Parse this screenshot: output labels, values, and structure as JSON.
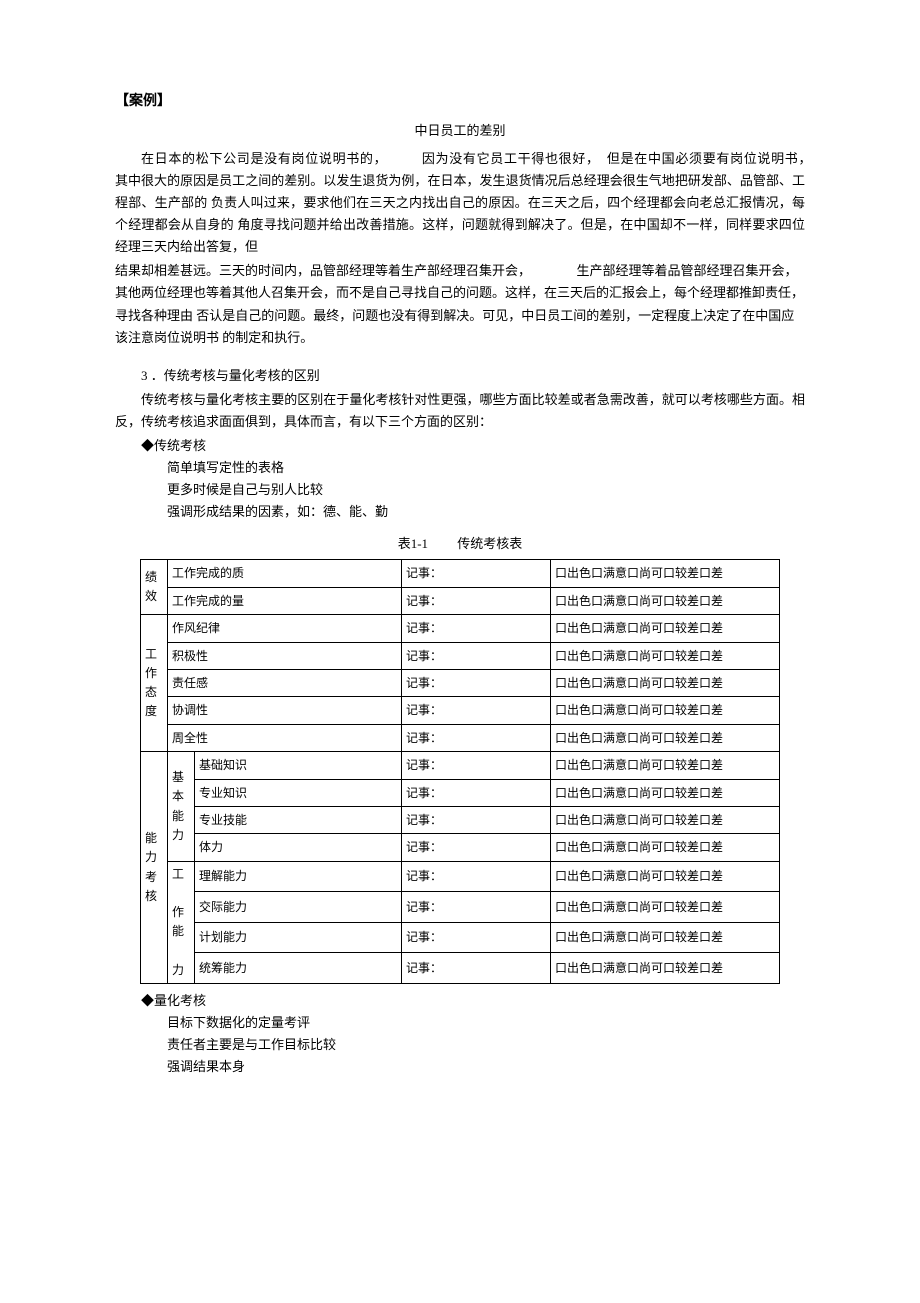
{
  "heading": "【案例】",
  "subtitle": "中日员工的差别",
  "case_paras": [
    "在日本的松下公司是没有岗位说明书的，　　　因为没有它员工干得也很好，　但是在中国必须要有岗位说明书，　　　　其中很大的原因是员工之间的差别。以发生退货为例，在日本，发生退货情况后总经理会很生气地把研发部、品管部、工程部、生产部的 负责人叫过来，要求他们在三天之内找出自己的原因。在三天之后，四个经理都会向老总汇报情况，每个经理都会从自身的 角度寻找问题并给出改善措施。这样，问题就得到解决了。但是，在中国却不一样，同样要求四位经理三天内给出答复，但",
    "结果却相差甚远。三天的时间内，品管部经理等着生产部经理召集开会，　　　　生产部经理等着品管部经理召集开会，　　　　其他两位经理也等着其他人召集开会，而不是自己寻找自己的问题。这样，在三天后的汇报会上，每个经理都推卸责任，寻找各种理由 否认是自己的问题。最终，问题也没有得到解决。可见，中日员工间的差别，一定程度上决定了在中国应该注意岗位说明书 的制定和执行。"
  ],
  "section_num": "3 ．传统考核与量化考核的区别",
  "section_para": "传统考核与量化考核主要的区别在于量化考核针对性更强，哪些方面比较差或者急需改善，就可以考核哪些方面。相反，传统考核追求面面俱到，具体而言，有以下三个方面的区别：",
  "trad_label": "◆传统考核",
  "trad_points": [
    "简单填写定性的表格",
    "更多时候是自己与别人比较",
    "强调形成结果的因素，如：德、能、勤"
  ],
  "table_caption_id": "表1-1",
  "table_caption_name": "传统考核表",
  "note_label": "记事：",
  "rating_label": "口出色口满意口尚可口较差口差",
  "groups": {
    "g1": "绩效",
    "g2": "工作态度",
    "g3": "能力考核",
    "sg_basic": "基本能力",
    "sg_work": "工 作能 力"
  },
  "rows": {
    "r1": "工作完成的质",
    "r2": "工作完成的量",
    "r3": "作风纪律",
    "r4": "积极性",
    "r5": "责任感",
    "r6": "协调性",
    "r7": "周全性",
    "r8": "基础知识",
    "r9": "专业知识",
    "r10": "专业技能",
    "r11": "体力",
    "r12": "理解能力",
    "r13": "交际能力",
    "r14": "计划能力",
    "r15": "统筹能力"
  },
  "quant_label": "◆量化考核",
  "quant_points": [
    "目标下数据化的定量考评",
    "责任者主要是与工作目标比较",
    "强调结果本身"
  ]
}
